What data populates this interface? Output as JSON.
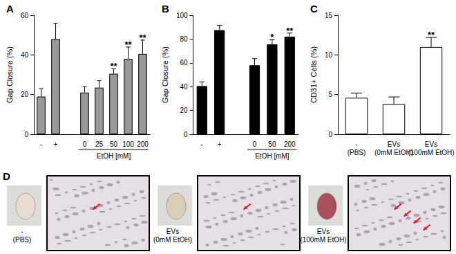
{
  "chart_data": [
    {
      "type": "bar",
      "title": "A",
      "ylabel": "Gap Closure (%)",
      "xlabel": "EtOH [mM]",
      "categories": [
        "-",
        "+",
        null,
        "0",
        "25",
        "50",
        "100",
        "200"
      ],
      "values": [
        19,
        48,
        null,
        21,
        23.5,
        30.5,
        38,
        40.5
      ],
      "errors": [
        4,
        8,
        null,
        3,
        3.5,
        2.5,
        6,
        7
      ],
      "significance": [
        null,
        null,
        null,
        null,
        null,
        "**",
        "**",
        "**"
      ],
      "color": "#999999",
      "ylim": [
        0,
        60
      ],
      "yticks": [
        0,
        20,
        40,
        60
      ],
      "grid": false
    },
    {
      "type": "bar",
      "title": "B",
      "ylabel": "Gap Closure (%)",
      "xlabel": "EtOH [mM]",
      "categories": [
        "-",
        "+",
        null,
        "0",
        "50",
        "200"
      ],
      "values": [
        40.5,
        87.5,
        null,
        58,
        75.5,
        82
      ],
      "errors": [
        3.5,
        4,
        null,
        5.5,
        4,
        3
      ],
      "significance": [
        null,
        null,
        null,
        null,
        "*",
        "**"
      ],
      "color": "#000000",
      "ylim": [
        0,
        100
      ],
      "yticks": [
        0,
        20,
        40,
        60,
        80,
        100
      ],
      "grid": false
    },
    {
      "type": "bar",
      "title": "C",
      "ylabel": "CD31+ Cells (%)",
      "categories": [
        "-\n(PBS)",
        "EVs\n(0mM EtOH)",
        "EVs\n(100mM EtOH)"
      ],
      "values": [
        4.6,
        3.8,
        11
      ],
      "errors": [
        0.6,
        0.9,
        1.2
      ],
      "significance": [
        null,
        null,
        "**"
      ],
      "color": "#ffffff",
      "ylim": [
        0,
        15
      ],
      "yticks": [
        0,
        5,
        10,
        15
      ],
      "grid": false
    }
  ],
  "panel_d": {
    "title": "D",
    "groups": [
      {
        "label": "-\n(PBS)"
      },
      {
        "label": "EVs\n(0mM EtOH)"
      },
      {
        "label": "EVs\n(100mM EtOH)"
      }
    ]
  }
}
